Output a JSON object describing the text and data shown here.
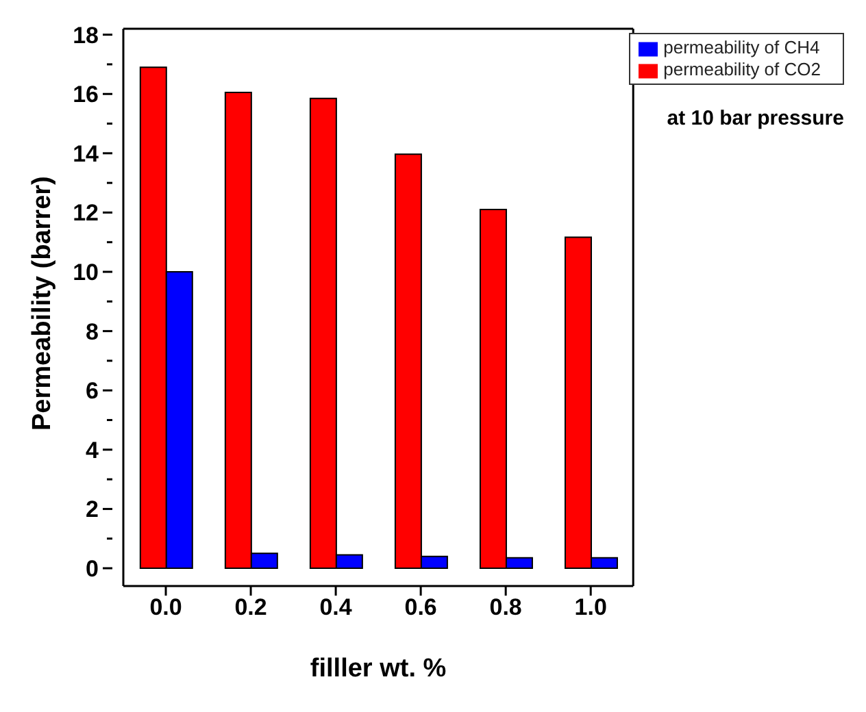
{
  "chart_data": {
    "type": "bar",
    "xlabel": "filller wt. %",
    "ylabel": "Permeability (barrer)",
    "categories": [
      "0.0",
      "0.2",
      "0.4",
      "0.6",
      "0.8",
      "1.0"
    ],
    "series": [
      {
        "name": "permeability of CO2",
        "color": "#ff0000",
        "values": [
          16.9,
          16.05,
          15.85,
          13.97,
          12.1,
          11.17
        ]
      },
      {
        "name": "permeability of CH4",
        "color": "#0000ff",
        "values": [
          10.0,
          0.5,
          0.45,
          0.4,
          0.35,
          0.35
        ]
      }
    ],
    "ylim": [
      -0.6,
      18.2
    ],
    "yticks": [
      0,
      {
        "value": 1,
        "label": null
      },
      2,
      {
        "value": 3,
        "label": null
      },
      4,
      {
        "value": 5,
        "label": null
      },
      6,
      {
        "value": 7,
        "label": null
      },
      8,
      {
        "value": 9,
        "label": null
      },
      10,
      {
        "value": 11,
        "label": null
      },
      12,
      {
        "value": 13,
        "label": null
      },
      14,
      {
        "value": 15,
        "label": null
      },
      16,
      {
        "value": 17,
        "label": null
      },
      18
    ],
    "annotations": [
      "at 10 bar pressure"
    ],
    "legend": "top right",
    "grid": false
  }
}
